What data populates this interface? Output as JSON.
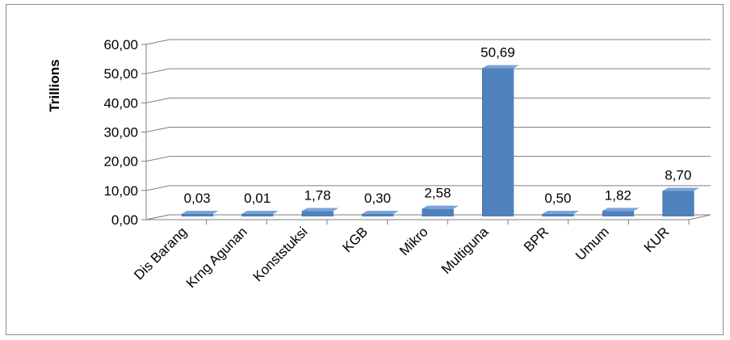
{
  "chart_data": {
    "type": "bar",
    "style": "3d-column",
    "ylabel": "Trillions",
    "xlabel": "",
    "categories": [
      "Dis Barang",
      "Krng Agunan",
      "Konststuksi",
      "KGB",
      "Mikro",
      "Multiguna",
      "BPR",
      "Umum",
      "KUR"
    ],
    "values": [
      0.03,
      0.01,
      1.78,
      0.3,
      2.58,
      50.69,
      0.5,
      1.82,
      8.7
    ],
    "data_labels": [
      "0,03",
      "0,01",
      "1,78",
      "0,30",
      "2,58",
      "50,69",
      "0,50",
      "1,82",
      "8,70"
    ],
    "ylim": [
      0,
      60
    ],
    "yticks": [
      0,
      10,
      20,
      30,
      40,
      50,
      60
    ],
    "ytick_labels": [
      "0,00",
      "10,00",
      "20,00",
      "30,00",
      "40,00",
      "50,00",
      "60,00"
    ],
    "grid": true,
    "legend": "none",
    "colors": {
      "bar_front": "#4f81bd",
      "bar_top": "#7ba3d9",
      "bar_side": "#2c4d75",
      "grid": "#7f7f7f"
    }
  }
}
